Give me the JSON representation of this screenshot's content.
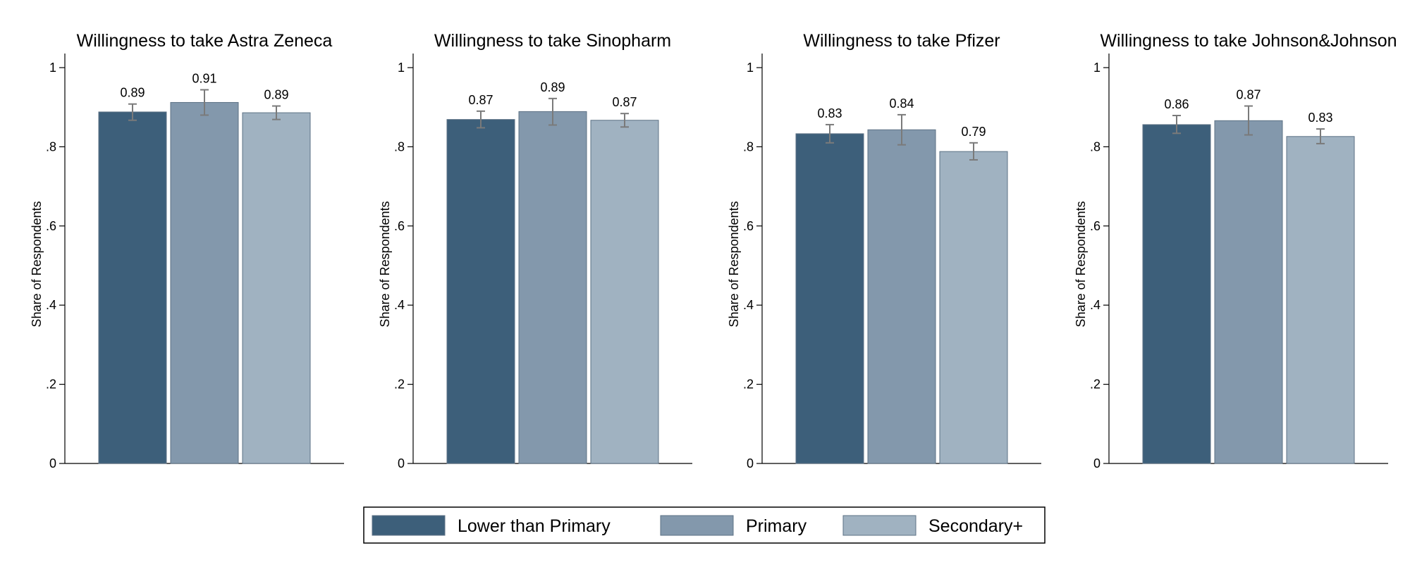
{
  "chart_data": [
    {
      "type": "bar",
      "title": "Willingness to take Astra Zeneca",
      "ylabel": "Share of Respondents",
      "ylim": [
        0,
        1
      ],
      "yticks": [
        0,
        0.2,
        0.4,
        0.6,
        0.8,
        1
      ],
      "ytick_labels": [
        "0",
        ".2",
        ".4",
        ".6",
        ".8",
        "1"
      ],
      "categories": [
        "Lower than Primary",
        "Primary",
        "Secondary+"
      ],
      "values": [
        0.888,
        0.912,
        0.886
      ],
      "value_labels": [
        "0.89",
        "0.91",
        "0.89"
      ],
      "error_low": [
        0.867,
        0.88,
        0.869
      ],
      "error_high": [
        0.908,
        0.944,
        0.903
      ]
    },
    {
      "type": "bar",
      "title": "Willingness to take Sinopharm",
      "ylabel": "Share of Respondents",
      "ylim": [
        0,
        1
      ],
      "yticks": [
        0,
        0.2,
        0.4,
        0.6,
        0.8,
        1
      ],
      "ytick_labels": [
        "0",
        ".2",
        ".4",
        ".6",
        ".8",
        "1"
      ],
      "categories": [
        "Lower than Primary",
        "Primary",
        "Secondary+"
      ],
      "values": [
        0.869,
        0.889,
        0.867
      ],
      "value_labels": [
        "0.87",
        "0.89",
        "0.87"
      ],
      "error_low": [
        0.848,
        0.855,
        0.85
      ],
      "error_high": [
        0.89,
        0.922,
        0.884
      ]
    },
    {
      "type": "bar",
      "title": "Willingness to take Pfizer",
      "ylabel": "Share of Respondents",
      "ylim": [
        0,
        1
      ],
      "yticks": [
        0,
        0.2,
        0.4,
        0.6,
        0.8,
        1
      ],
      "ytick_labels": [
        "0",
        ".2",
        ".4",
        ".6",
        ".8",
        "1"
      ],
      "categories": [
        "Lower than Primary",
        "Primary",
        "Secondary+"
      ],
      "values": [
        0.833,
        0.843,
        0.788
      ],
      "value_labels": [
        "0.83",
        "0.84",
        "0.79"
      ],
      "error_low": [
        0.81,
        0.805,
        0.767
      ],
      "error_high": [
        0.856,
        0.881,
        0.81
      ]
    },
    {
      "type": "bar",
      "title": "Willingness to take Johnson&Johnson",
      "ylabel": "Share of Respondents",
      "ylim": [
        0,
        1
      ],
      "yticks": [
        0,
        0.2,
        0.4,
        0.6,
        0.8,
        1
      ],
      "ytick_labels": [
        "0",
        ".2",
        ".4",
        ".6",
        ".8",
        "1"
      ],
      "categories": [
        "Lower than Primary",
        "Primary",
        "Secondary+"
      ],
      "values": [
        0.856,
        0.866,
        0.826
      ],
      "value_labels": [
        "0.86",
        "0.87",
        "0.83"
      ],
      "error_low": [
        0.834,
        0.83,
        0.808
      ],
      "error_high": [
        0.879,
        0.903,
        0.845
      ]
    }
  ],
  "legend": {
    "placement": "bottom-center",
    "items": [
      {
        "label": "Lower than Primary",
        "color": "#3d5f7a"
      },
      {
        "label": "Primary",
        "color": "#8398ac"
      },
      {
        "label": "Secondary+",
        "color": "#a0b2c1"
      }
    ]
  },
  "colors": {
    "bar_edge": "#5d7285",
    "error_bar": "#7a7a7a",
    "axis": "#000000",
    "text": "#000000"
  }
}
